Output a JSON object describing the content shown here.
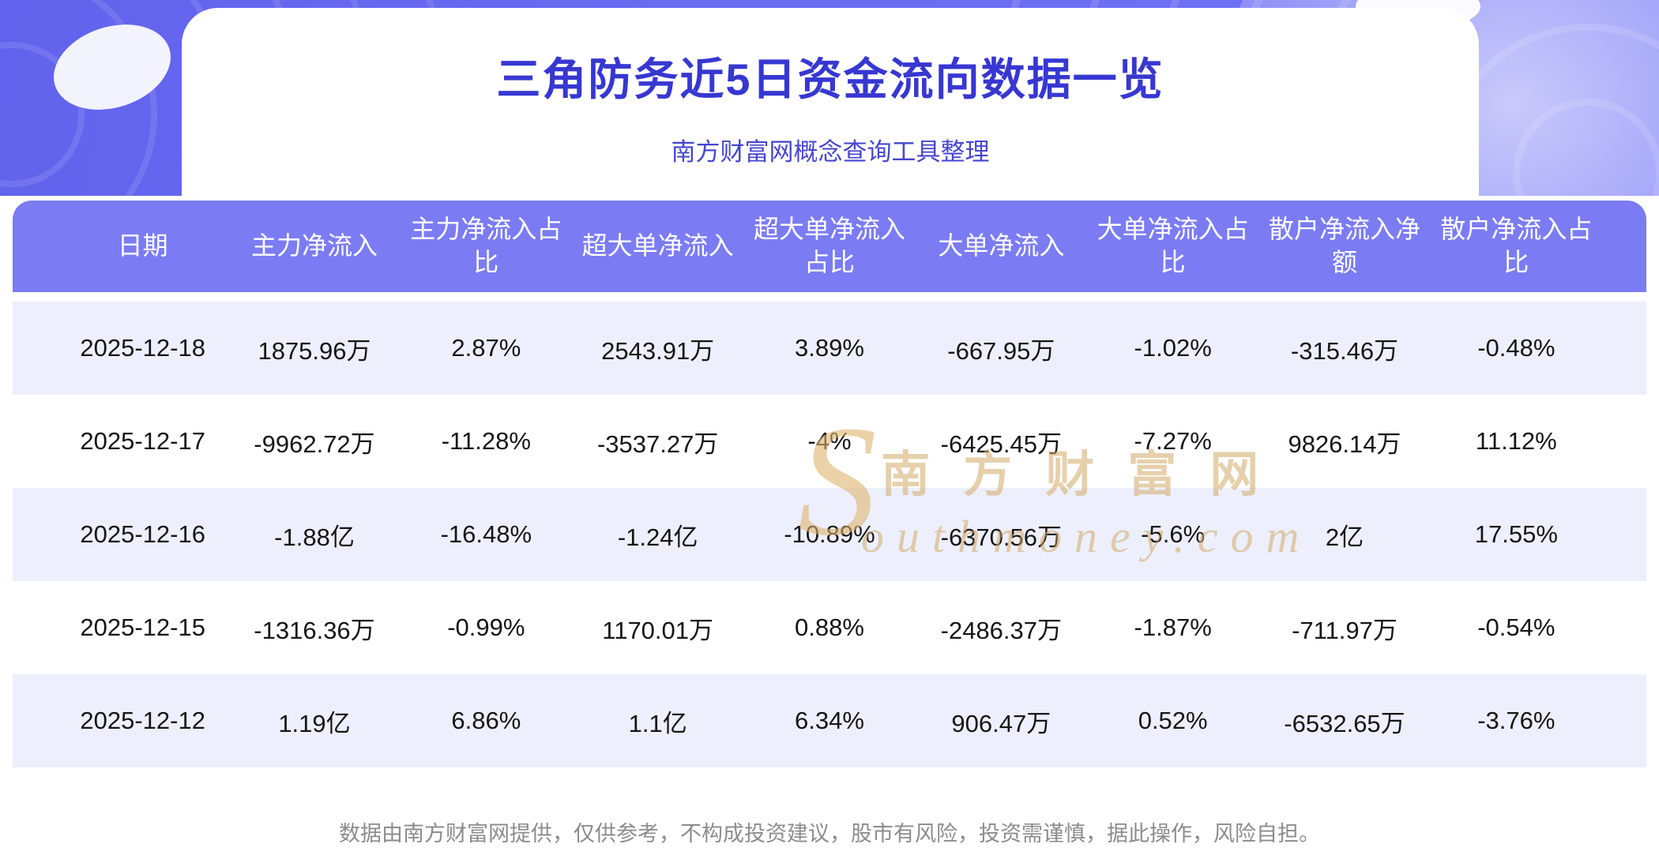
{
  "page": {
    "title": "三角防务近5日资金流向数据一览",
    "subtitle": "南方财富网概念查询工具整理",
    "disclaimer": "数据由南方财富网提供，仅供参考，不构成投资建议，股市有风险，投资需谨慎，据此操作，风险自担。"
  },
  "watermark": {
    "initial": "S",
    "line1": "南方财富网",
    "line2": "outhmoney.com"
  },
  "colors": {
    "banner": "#6b6cf2",
    "table_header_bg": "#7b7cf3",
    "row_alt_bg": "#edeffc",
    "title_text": "#3737d2",
    "watermark": "#d2aa68"
  },
  "chart_data": {
    "type": "table",
    "title": "三角防务近5日资金流向数据一览",
    "subtitle": "南方财富网概念查询工具整理",
    "columns": [
      "日期",
      "主力净流入",
      "主力净流入占比",
      "超大单净流入",
      "超大单净流入占比",
      "大单净流入",
      "大单净流入占比",
      "散户净流入净额",
      "散户净流入占比"
    ],
    "rows": [
      [
        "2025-12-18",
        "1875.96万",
        "2.87%",
        "2543.91万",
        "3.89%",
        "-667.95万",
        "-1.02%",
        "-315.46万",
        "-0.48%"
      ],
      [
        "2025-12-17",
        "-9962.72万",
        "-11.28%",
        "-3537.27万",
        "-4%",
        "-6425.45万",
        "-7.27%",
        "9826.14万",
        "11.12%"
      ],
      [
        "2025-12-16",
        "-1.88亿",
        "-16.48%",
        "-1.24亿",
        "-10.89%",
        "-6370.56万",
        "-5.6%",
        "2亿",
        "17.55%"
      ],
      [
        "2025-12-15",
        "-1316.36万",
        "-0.99%",
        "1170.01万",
        "0.88%",
        "-2486.37万",
        "-1.87%",
        "-711.97万",
        "-0.54%"
      ],
      [
        "2025-12-12",
        "1.19亿",
        "6.86%",
        "1.1亿",
        "6.34%",
        "906.47万",
        "0.52%",
        "-6532.65万",
        "-3.76%"
      ]
    ]
  }
}
